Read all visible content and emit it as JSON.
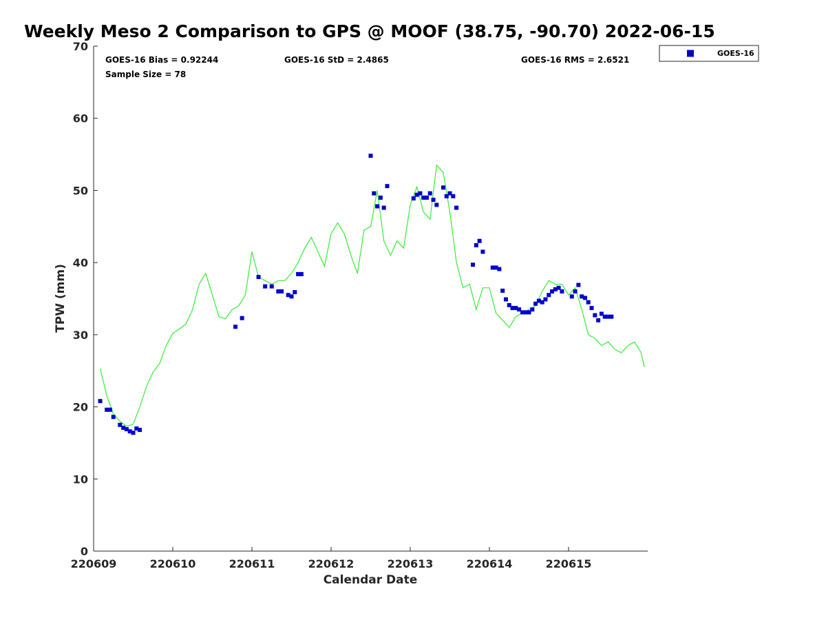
{
  "chart_data": {
    "type": "line",
    "title": "Weekly Meso 2 Comparison to GPS @ MOOF (38.75, -90.70) 2022-06-15",
    "xlabel": "Calendar Date",
    "ylabel": "TPW (mm)",
    "xlim": [
      "2022-06-09",
      "2022-06-16"
    ],
    "ylim": [
      0,
      70
    ],
    "x_tick_labels": [
      "220609",
      "220610",
      "220611",
      "220612",
      "220613",
      "220614",
      "220615"
    ],
    "y_tick_labels": [
      "0",
      "10",
      "20",
      "30",
      "40",
      "50",
      "60",
      "70"
    ],
    "grid": false,
    "legend_position": "top-right, outside plot",
    "stats": {
      "bias": "GOES-16 Bias = 0.92244",
      "std": "GOES-16 StD = 2.4865",
      "rms": "GOES-16 RMS = 2.6521",
      "sample": "Sample Size = 78"
    },
    "series": [
      {
        "name": "",
        "kind": "line",
        "color": "#33ee33",
        "x": [
          "2022-06-09T02:00",
          "2022-06-09T04:00",
          "2022-06-09T06:00",
          "2022-06-09T08:00",
          "2022-06-09T10:00",
          "2022-06-09T12:00",
          "2022-06-09T14:00",
          "2022-06-09T16:00",
          "2022-06-09T18:00",
          "2022-06-09T20:00",
          "2022-06-09T22:00",
          "2022-06-10T00:00",
          "2022-06-10T02:00",
          "2022-06-10T04:00",
          "2022-06-10T06:00",
          "2022-06-10T08:00",
          "2022-06-10T10:00",
          "2022-06-10T12:00",
          "2022-06-10T14:00",
          "2022-06-10T16:00",
          "2022-06-10T18:00",
          "2022-06-10T20:00",
          "2022-06-10T22:00",
          "2022-06-11T00:00",
          "2022-06-11T02:00",
          "2022-06-11T04:00",
          "2022-06-11T06:00",
          "2022-06-11T08:00",
          "2022-06-11T10:00",
          "2022-06-11T12:00",
          "2022-06-11T14:00",
          "2022-06-11T16:00",
          "2022-06-11T18:00",
          "2022-06-11T20:00",
          "2022-06-11T22:00",
          "2022-06-12T00:00",
          "2022-06-12T02:00",
          "2022-06-12T04:00",
          "2022-06-12T06:00",
          "2022-06-12T08:00",
          "2022-06-12T10:00",
          "2022-06-12T12:00",
          "2022-06-12T14:00",
          "2022-06-12T16:00",
          "2022-06-12T18:00",
          "2022-06-12T20:00",
          "2022-06-12T22:00",
          "2022-06-13T00:00",
          "2022-06-13T02:00",
          "2022-06-13T04:00",
          "2022-06-13T06:00",
          "2022-06-13T08:00",
          "2022-06-13T10:00",
          "2022-06-13T12:00",
          "2022-06-13T14:00",
          "2022-06-13T16:00",
          "2022-06-13T18:00",
          "2022-06-13T20:00",
          "2022-06-13T22:00",
          "2022-06-14T00:00",
          "2022-06-14T02:00",
          "2022-06-14T04:00",
          "2022-06-14T06:00",
          "2022-06-14T08:00",
          "2022-06-14T10:00",
          "2022-06-14T12:00",
          "2022-06-14T14:00",
          "2022-06-14T16:00",
          "2022-06-14T18:00",
          "2022-06-14T20:00",
          "2022-06-14T22:00",
          "2022-06-15T00:00",
          "2022-06-15T02:00",
          "2022-06-15T04:00",
          "2022-06-15T06:00",
          "2022-06-15T08:00",
          "2022-06-15T10:00",
          "2022-06-15T12:00",
          "2022-06-15T14:00",
          "2022-06-15T16:00",
          "2022-06-15T18:00",
          "2022-06-15T20:00",
          "2022-06-15T22:00",
          "2022-06-15T23:00"
        ],
        "y": [
          25.3,
          21.5,
          19.0,
          18.0,
          17.3,
          17.6,
          20.0,
          22.8,
          24.8,
          26.0,
          28.5,
          30.2,
          30.8,
          31.5,
          33.5,
          37.0,
          38.5,
          35.5,
          32.5,
          32.2,
          33.5,
          34.0,
          35.5,
          41.5,
          38.0,
          37.5,
          37.0,
          37.5,
          37.5,
          38.5,
          40.0,
          42.0,
          43.5,
          41.5,
          39.5,
          44.0,
          45.5,
          44.0,
          41.0,
          38.5,
          44.5,
          45.0,
          50.0,
          43.0,
          41.0,
          43.0,
          42.0,
          48.0,
          50.5,
          47.0,
          46.0,
          53.5,
          52.5,
          47.0,
          40.0,
          36.5,
          37.0,
          33.5,
          36.5,
          36.5,
          33.0,
          32.0,
          31.0,
          32.5,
          33.0,
          33.5,
          34.0,
          36.0,
          37.5,
          37.0,
          37.0,
          35.5,
          36.5,
          33.5,
          30.0,
          29.5,
          28.5,
          29.0,
          28.0,
          27.5,
          28.5,
          29.0,
          27.5,
          25.5
        ]
      },
      {
        "name": "GOES-16",
        "kind": "scatter",
        "marker": "square",
        "color": "#0000cc",
        "x": [
          "2022-06-09T02:00",
          "2022-06-09T04:00",
          "2022-06-09T05:00",
          "2022-06-09T06:00",
          "2022-06-09T08:00",
          "2022-06-09T09:00",
          "2022-06-09T10:00",
          "2022-06-09T11:00",
          "2022-06-09T12:00",
          "2022-06-09T13:00",
          "2022-06-09T14:00",
          "2022-06-10T19:00",
          "2022-06-10T21:00",
          "2022-06-11T02:00",
          "2022-06-11T04:00",
          "2022-06-11T06:00",
          "2022-06-11T08:00",
          "2022-06-11T09:00",
          "2022-06-11T11:00",
          "2022-06-11T12:00",
          "2022-06-11T13:00",
          "2022-06-11T14:00",
          "2022-06-11T15:00",
          "2022-06-12T12:00",
          "2022-06-12T13:00",
          "2022-06-12T14:00",
          "2022-06-12T15:00",
          "2022-06-12T16:00",
          "2022-06-12T17:00",
          "2022-06-13T01:00",
          "2022-06-13T02:00",
          "2022-06-13T03:00",
          "2022-06-13T04:00",
          "2022-06-13T05:00",
          "2022-06-13T06:00",
          "2022-06-13T07:00",
          "2022-06-13T08:00",
          "2022-06-13T10:00",
          "2022-06-13T11:00",
          "2022-06-13T12:00",
          "2022-06-13T13:00",
          "2022-06-13T14:00",
          "2022-06-13T19:00",
          "2022-06-13T20:00",
          "2022-06-13T21:00",
          "2022-06-13T22:00",
          "2022-06-14T01:00",
          "2022-06-14T02:00",
          "2022-06-14T03:00",
          "2022-06-14T04:00",
          "2022-06-14T05:00",
          "2022-06-14T06:00",
          "2022-06-14T07:00",
          "2022-06-14T08:00",
          "2022-06-14T09:00",
          "2022-06-14T10:00",
          "2022-06-14T11:00",
          "2022-06-14T12:00",
          "2022-06-14T13:00",
          "2022-06-14T14:00",
          "2022-06-14T15:00",
          "2022-06-14T16:00",
          "2022-06-14T17:00",
          "2022-06-14T18:00",
          "2022-06-14T19:00",
          "2022-06-14T20:00",
          "2022-06-14T21:00",
          "2022-06-14T22:00",
          "2022-06-15T01:00",
          "2022-06-15T02:00",
          "2022-06-15T03:00",
          "2022-06-15T04:00",
          "2022-06-15T05:00",
          "2022-06-15T06:00",
          "2022-06-15T07:00",
          "2022-06-15T08:00",
          "2022-06-15T09:00",
          "2022-06-15T10:00",
          "2022-06-15T11:00",
          "2022-06-15T12:00",
          "2022-06-15T13:00"
        ],
        "y": [
          20.8,
          19.6,
          19.6,
          18.6,
          17.5,
          17.1,
          16.9,
          16.6,
          16.4,
          17.0,
          16.8,
          31.1,
          32.3,
          38.0,
          36.7,
          36.7,
          36.0,
          36.0,
          35.5,
          35.3,
          35.9,
          38.4,
          38.4,
          54.8,
          49.6,
          47.8,
          49.0,
          47.6,
          50.6,
          48.9,
          49.4,
          49.6,
          49.0,
          49.0,
          49.6,
          48.7,
          48.0,
          50.4,
          49.2,
          49.6,
          49.2,
          47.6,
          39.7,
          42.4,
          43.0,
          41.5,
          39.3,
          39.3,
          39.1,
          36.1,
          34.9,
          34.1,
          33.7,
          33.7,
          33.5,
          33.1,
          33.1,
          33.1,
          33.5,
          34.3,
          34.7,
          34.5,
          34.9,
          35.5,
          36.0,
          36.3,
          36.5,
          36.0,
          35.3,
          36.0,
          36.9,
          35.3,
          35.1,
          34.5,
          33.7,
          32.7,
          32.0,
          32.9,
          32.5,
          32.5,
          32.5
        ]
      }
    ]
  }
}
